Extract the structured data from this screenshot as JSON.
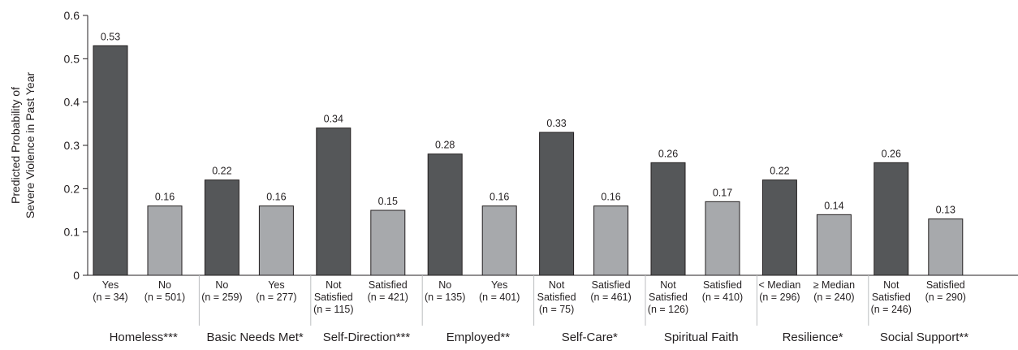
{
  "chart_data": {
    "type": "bar",
    "ylabel": [
      "Predicted Probability of",
      "Severe Violence in Past Year"
    ],
    "ylim": [
      0,
      0.6
    ],
    "yticks": [
      "0",
      "0.1",
      "0.2",
      "0.3",
      "0.4",
      "0.5",
      "0.6"
    ],
    "colors": {
      "dark": "#555759",
      "light": "#a7a9ac",
      "stroke": "#231f20"
    },
    "groups": [
      {
        "label": "Homeless***",
        "bars": [
          {
            "lines": [
              "Yes",
              "(n = 34)"
            ],
            "value": 0.53,
            "value_label": "0.53",
            "shade": "dark"
          },
          {
            "lines": [
              "No",
              "(n = 501)"
            ],
            "value": 0.16,
            "value_label": "0.16",
            "shade": "light"
          }
        ]
      },
      {
        "label": "Basic Needs Met*",
        "bars": [
          {
            "lines": [
              "No",
              "(n = 259)"
            ],
            "value": 0.22,
            "value_label": "0.22",
            "shade": "dark"
          },
          {
            "lines": [
              "Yes",
              "(n = 277)"
            ],
            "value": 0.16,
            "value_label": "0.16",
            "shade": "light"
          }
        ]
      },
      {
        "label": "Self-Direction***",
        "bars": [
          {
            "lines": [
              "Not",
              "Satisfied",
              "(n = 115)"
            ],
            "value": 0.34,
            "value_label": "0.34",
            "shade": "dark"
          },
          {
            "lines": [
              "Satisfied",
              "(n = 421)"
            ],
            "value": 0.15,
            "value_label": "0.15",
            "shade": "light"
          }
        ]
      },
      {
        "label": "Employed**",
        "bars": [
          {
            "lines": [
              "No",
              "(n = 135)"
            ],
            "value": 0.28,
            "value_label": "0.28",
            "shade": "dark"
          },
          {
            "lines": [
              "Yes",
              "(n = 401)"
            ],
            "value": 0.16,
            "value_label": "0.16",
            "shade": "light"
          }
        ]
      },
      {
        "label": "Self-Care*",
        "bars": [
          {
            "lines": [
              "Not",
              "Satisfied",
              "(n = 75)"
            ],
            "value": 0.33,
            "value_label": "0.33",
            "shade": "dark"
          },
          {
            "lines": [
              "Satisfied",
              "(n = 461)"
            ],
            "value": 0.16,
            "value_label": "0.16",
            "shade": "light"
          }
        ]
      },
      {
        "label": "Spiritual Faith",
        "bars": [
          {
            "lines": [
              "Not",
              "Satisfied",
              "(n = 126)"
            ],
            "value": 0.26,
            "value_label": "0.26",
            "shade": "dark"
          },
          {
            "lines": [
              "Satisfied",
              "(n = 410)"
            ],
            "value": 0.17,
            "value_label": "0.17",
            "shade": "light"
          }
        ]
      },
      {
        "label": "Resilience*",
        "bars": [
          {
            "lines": [
              "< Median",
              "(n = 296)"
            ],
            "value": 0.22,
            "value_label": "0.22",
            "shade": "dark"
          },
          {
            "lines": [
              "≥ Median",
              "(n = 240)"
            ],
            "value": 0.14,
            "value_label": "0.14",
            "shade": "light"
          }
        ]
      },
      {
        "label": "Social Support**",
        "bars": [
          {
            "lines": [
              "Not",
              "Satisfied",
              "(n = 246)"
            ],
            "value": 0.26,
            "value_label": "0.26",
            "shade": "dark"
          },
          {
            "lines": [
              "Satisfied",
              "(n = 290)"
            ],
            "value": 0.13,
            "value_label": "0.13",
            "shade": "light"
          }
        ]
      }
    ]
  }
}
